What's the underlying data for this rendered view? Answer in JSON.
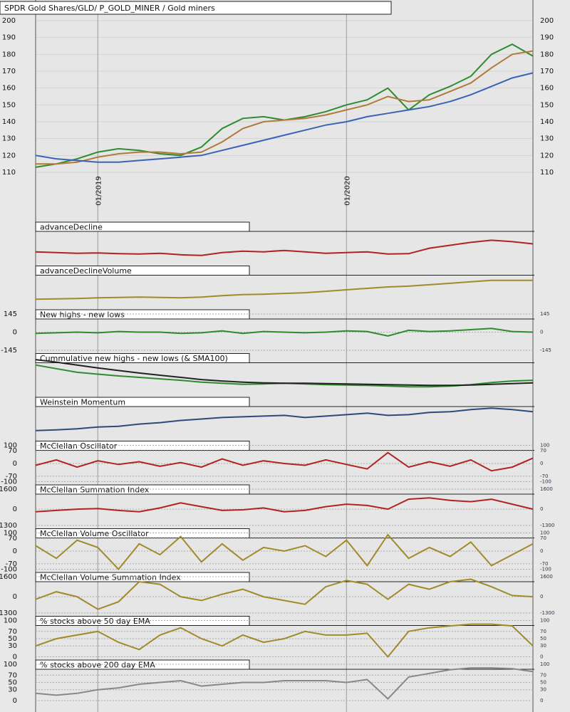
{
  "chart_data": [
    {
      "type": "line",
      "title": "SPDR Gold Shares/GLD/ P_GOLD_MINER / Gold miners",
      "categories": [
        null,
        null,
        null,
        "01/2019",
        null,
        null,
        null,
        null,
        null,
        null,
        null,
        null,
        null,
        null,
        null,
        "01/2020",
        null,
        null,
        null,
        null,
        null,
        null,
        null,
        null,
        null
      ],
      "series": [
        {
          "color": "#2e8b2e",
          "values": [
            113,
            115,
            118,
            122,
            124,
            123,
            121,
            120,
            125,
            136,
            142,
            143,
            141,
            143,
            146,
            150,
            153,
            160,
            147,
            156,
            161,
            167,
            180,
            186,
            179
          ]
        },
        {
          "color": "#b07a3a",
          "values": [
            115,
            115,
            116,
            119,
            121,
            122,
            122,
            121,
            122,
            128,
            136,
            140,
            141,
            142,
            144,
            147,
            150,
            155,
            152,
            153,
            158,
            163,
            172,
            180,
            182
          ]
        },
        {
          "color": "#3b62b5",
          "values": [
            120,
            118,
            117,
            116,
            116,
            117,
            118,
            119,
            120,
            123,
            126,
            129,
            132,
            135,
            138,
            140,
            143,
            145,
            147,
            149,
            152,
            156,
            161,
            166,
            169
          ]
        }
      ],
      "ylim": [
        110,
        200
      ],
      "yticks": [
        110,
        120,
        130,
        140,
        150,
        160,
        170,
        180,
        190,
        200
      ]
    },
    {
      "type": "line",
      "title": "advanceDecline",
      "color": "#b22222",
      "ylim": [
        0,
        100
      ],
      "values": [
        30,
        28,
        26,
        27,
        25,
        24,
        26,
        22,
        20,
        28,
        32,
        30,
        34,
        30,
        26,
        28,
        30,
        24,
        25,
        40,
        48,
        56,
        62,
        58,
        52
      ]
    },
    {
      "type": "line",
      "title": "advanceDeclineVolume",
      "color": "#a08a2a",
      "ylim": [
        0,
        100
      ],
      "values": [
        20,
        21,
        22,
        24,
        25,
        26,
        25,
        24,
        26,
        30,
        33,
        34,
        36,
        38,
        42,
        46,
        50,
        54,
        56,
        60,
        64,
        68,
        72,
        72,
        72
      ]
    },
    {
      "type": "line",
      "title": "New highs - new lows",
      "color": "#2e8b2e",
      "ylim": [
        -145,
        145
      ],
      "yticks": [
        145,
        0,
        -145
      ],
      "values": [
        -10,
        -5,
        0,
        -5,
        5,
        0,
        0,
        -10,
        -5,
        10,
        -10,
        5,
        0,
        -5,
        0,
        10,
        5,
        -30,
        15,
        5,
        10,
        20,
        30,
        5,
        0
      ]
    },
    {
      "type": "line",
      "title": "Cummulative new highs - new lows (& SMA100)",
      "ylim": [
        0,
        100
      ],
      "series": [
        {
          "color": "#2e8b2e",
          "values": [
            80,
            70,
            60,
            55,
            50,
            46,
            42,
            38,
            33,
            30,
            27,
            28,
            30,
            28,
            26,
            25,
            24,
            22,
            20,
            20,
            22,
            26,
            32,
            36,
            38
          ]
        },
        {
          "color": "#222222",
          "values": [
            95,
            88,
            80,
            72,
            65,
            58,
            52,
            46,
            40,
            36,
            33,
            31,
            30,
            30,
            29,
            28,
            27,
            26,
            25,
            24,
            24,
            25,
            27,
            29,
            31
          ]
        }
      ]
    },
    {
      "type": "line",
      "title": "Weinstein Momentum",
      "color": "#2c4a7a",
      "ylim": [
        0,
        100
      ],
      "values": [
        20,
        22,
        25,
        30,
        32,
        38,
        42,
        48,
        52,
        56,
        58,
        60,
        62,
        56,
        60,
        64,
        68,
        62,
        64,
        70,
        72,
        78,
        82,
        78,
        72
      ]
    },
    {
      "type": "line",
      "title": "McClellan Oscillator",
      "color": "#b22222",
      "ylim": [
        -100,
        100
      ],
      "yticks": [
        100,
        70,
        0,
        -70,
        -100
      ],
      "values": [
        -10,
        20,
        -20,
        15,
        -5,
        10,
        -15,
        5,
        -20,
        25,
        -10,
        15,
        0,
        -10,
        20,
        -5,
        -30,
        60,
        -20,
        10,
        -15,
        20,
        -40,
        -20,
        30
      ]
    },
    {
      "type": "line",
      "title": "McClellan Summation Index",
      "color": "#b22222",
      "ylim": [
        -1300,
        1600
      ],
      "yticks": [
        1600,
        0,
        -1300
      ],
      "values": [
        -200,
        -100,
        0,
        50,
        -100,
        -200,
        100,
        500,
        200,
        -100,
        -50,
        100,
        -200,
        -100,
        200,
        400,
        300,
        0,
        800,
        900,
        700,
        600,
        800,
        400,
        0
      ]
    },
    {
      "type": "line",
      "title": "McClellan Volume Oscillator",
      "color": "#a08a2a",
      "ylim": [
        -100,
        100
      ],
      "yticks": [
        100,
        70,
        0,
        -70,
        -100
      ],
      "values": [
        30,
        -40,
        60,
        20,
        -100,
        40,
        -20,
        80,
        -60,
        40,
        -50,
        20,
        0,
        30,
        -30,
        60,
        -80,
        90,
        -40,
        20,
        -30,
        50,
        -80,
        -20,
        40
      ]
    },
    {
      "type": "line",
      "title": "McClellan Volume Summation Index",
      "color": "#a08a2a",
      "ylim": [
        -1300,
        1600
      ],
      "yticks": [
        1600,
        0,
        -1300
      ],
      "values": [
        -200,
        400,
        0,
        -1000,
        -400,
        1200,
        1000,
        0,
        -300,
        200,
        600,
        0,
        -300,
        -600,
        800,
        1300,
        1000,
        -200,
        1000,
        600,
        1200,
        1400,
        800,
        100,
        0
      ]
    },
    {
      "type": "line",
      "title": "% stocks above 50 day EMA",
      "color": "#a08a2a",
      "ylim": [
        0,
        100
      ],
      "yticks": [
        100,
        70,
        50,
        30,
        0
      ],
      "values": [
        30,
        50,
        60,
        70,
        40,
        20,
        60,
        80,
        50,
        30,
        60,
        40,
        50,
        70,
        60,
        60,
        65,
        0,
        70,
        80,
        85,
        90,
        90,
        85,
        30
      ]
    },
    {
      "type": "line",
      "title": "% stocks above 200 day EMA",
      "color": "#888888",
      "ylim": [
        0,
        100
      ],
      "yticks": [
        100,
        70,
        50,
        30,
        0
      ],
      "values": [
        20,
        15,
        20,
        30,
        35,
        45,
        50,
        55,
        40,
        45,
        50,
        50,
        55,
        55,
        55,
        50,
        58,
        5,
        65,
        75,
        85,
        90,
        90,
        88,
        80
      ]
    }
  ]
}
